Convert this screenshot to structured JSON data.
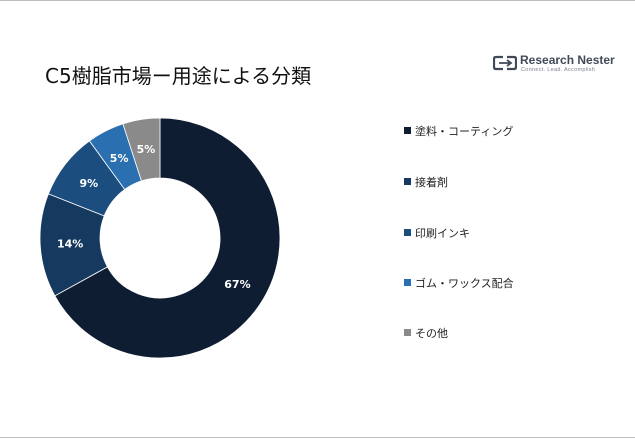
{
  "title": "C5樹脂市場ー用途による分類",
  "logo": {
    "icon": "research-nester-logo-icon",
    "name": "Research Nester",
    "tagline": "Connect. Lead. Accomplish"
  },
  "chart_data": {
    "type": "pie",
    "donut": true,
    "title": "C5樹脂市場ー用途による分類",
    "legend_position": "right",
    "categories": [
      "塗料・コーティング",
      "接着剤",
      "印刷インキ",
      "ゴム・ワックス配合",
      "その他"
    ],
    "values": [
      67,
      14,
      9,
      5,
      5
    ],
    "value_labels": [
      "67%",
      "14%",
      "9%",
      "5%",
      "5%"
    ],
    "colors": [
      "#0f1d33",
      "#163a5f",
      "#1b4e7e",
      "#2a6fb0",
      "#8a8a8a"
    ]
  }
}
